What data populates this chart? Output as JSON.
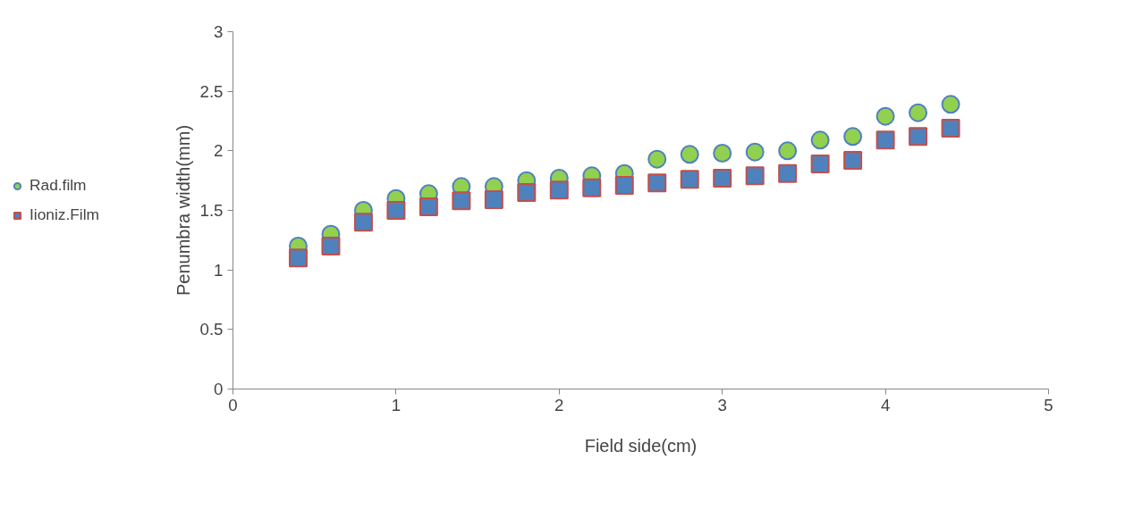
{
  "chart_data": {
    "type": "scatter",
    "xlabel": "Field side(cm)",
    "ylabel": "Penumbra width(mm)",
    "x": [
      0.4,
      0.6,
      0.8,
      1.0,
      1.2,
      1.4,
      1.6,
      1.8,
      2.0,
      2.2,
      2.4,
      2.6,
      2.8,
      3.0,
      3.2,
      3.4,
      3.6,
      3.8,
      4.0,
      4.2,
      4.4
    ],
    "series": [
      {
        "name": "Rad.film",
        "color": "#92d050",
        "marker": "circle",
        "values": [
          1.2,
          1.3,
          1.5,
          1.6,
          1.64,
          1.7,
          1.7,
          1.75,
          1.77,
          1.79,
          1.81,
          1.93,
          1.97,
          1.98,
          1.99,
          2.0,
          2.09,
          2.12,
          2.29,
          2.32,
          2.39
        ]
      },
      {
        "name": "Iioniz.Film",
        "color": "#4f81bd",
        "marker": "square",
        "values": [
          1.1,
          1.2,
          1.4,
          1.5,
          1.53,
          1.58,
          1.59,
          1.65,
          1.67,
          1.69,
          1.71,
          1.73,
          1.76,
          1.77,
          1.79,
          1.81,
          1.89,
          1.92,
          2.09,
          2.12,
          2.19
        ]
      }
    ],
    "xlim": [
      0,
      5
    ],
    "xticks": [
      0,
      1,
      2,
      3,
      4,
      5
    ],
    "ylim": [
      0,
      3
    ],
    "yticks": [
      0,
      0.5,
      1,
      1.5,
      2,
      2.5,
      3
    ],
    "grid": false,
    "legend": "left"
  }
}
